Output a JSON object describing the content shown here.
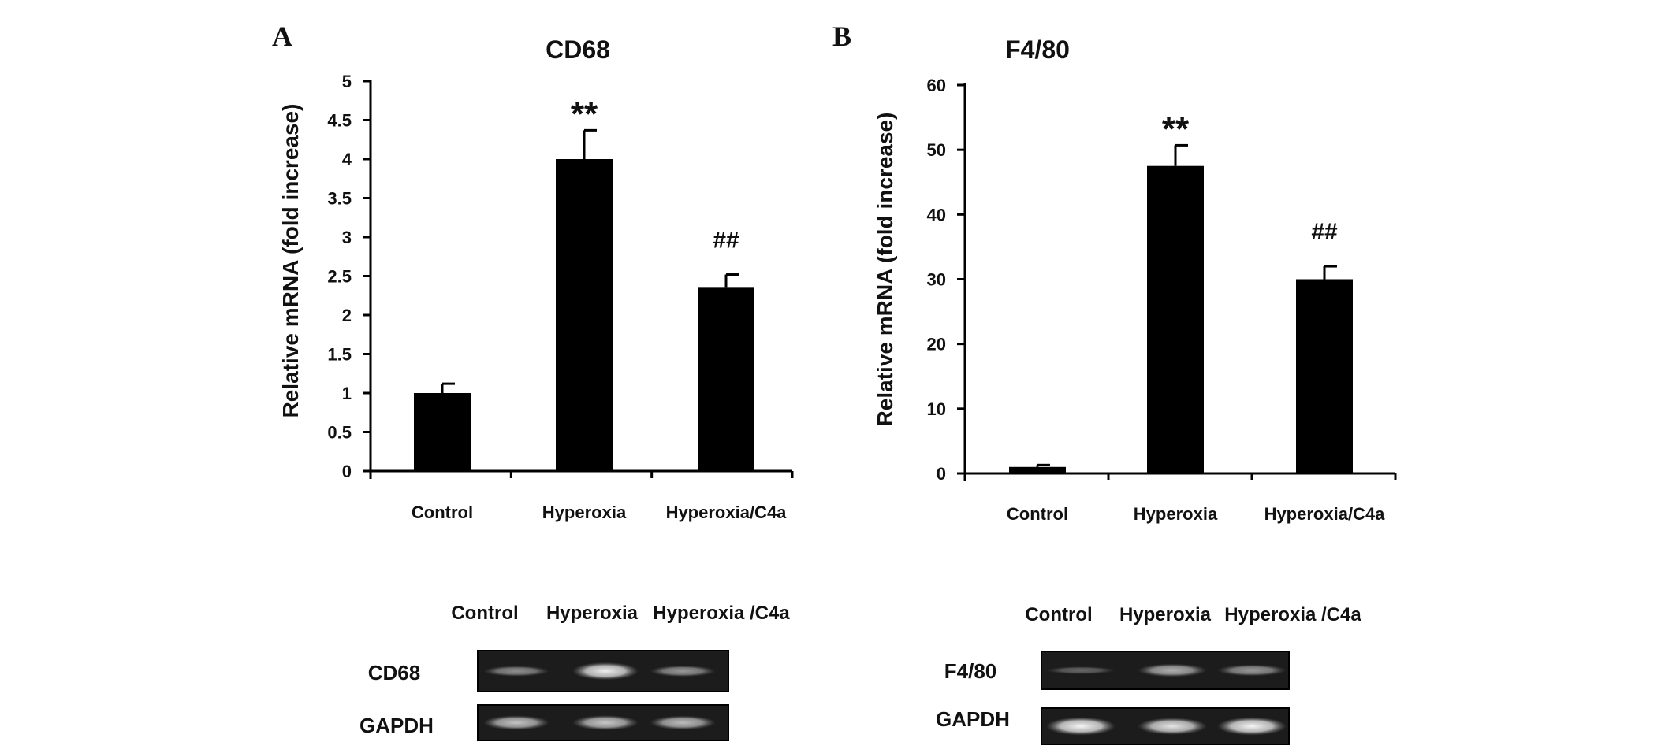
{
  "panels": [
    {
      "letter": "A"
    },
    {
      "letter": "B"
    }
  ],
  "chart_data": [
    {
      "type": "bar",
      "title": "CD68",
      "xlabel": "",
      "ylabel": "Relative mRNA (fold increase)",
      "categories": [
        "Control",
        "Hyperoxia",
        "Hyperoxia/C4a"
      ],
      "values": [
        1.0,
        4.0,
        2.35
      ],
      "errors": [
        0.12,
        0.37,
        0.17
      ],
      "significance": [
        "",
        "**",
        "##"
      ],
      "ylim": [
        0,
        5
      ],
      "yticks": [
        "0",
        "0.5",
        "1",
        "1.5",
        "2",
        "2.5",
        "3",
        "3.5",
        "4",
        "4.5",
        "5"
      ],
      "bar_color": "#000000",
      "grid": false,
      "legend": "none"
    },
    {
      "type": "bar",
      "title": "F4/80",
      "xlabel": "",
      "ylabel": "Relative mRNA (fold increase)",
      "categories": [
        "Control",
        "Hyperoxia",
        "Hyperoxia/C4a"
      ],
      "values": [
        1.0,
        47.5,
        30.0
      ],
      "errors": [
        0.3,
        3.2,
        2.0
      ],
      "significance": [
        "",
        "**",
        "##"
      ],
      "ylim": [
        0,
        60
      ],
      "yticks": [
        "0",
        "10",
        "20",
        "30",
        "40",
        "50",
        "60"
      ],
      "bar_color": "#000000",
      "grid": false,
      "legend": "none"
    }
  ],
  "gels": [
    {
      "lane_labels": [
        "Control",
        "Hyperoxia",
        "Hyperoxia /C4a"
      ],
      "rows": [
        {
          "label": "CD68",
          "intensities": [
            0.35,
            0.9,
            0.4
          ]
        },
        {
          "label": "GAPDH",
          "intensities": [
            0.65,
            0.68,
            0.62
          ]
        }
      ]
    },
    {
      "lane_labels": [
        "Control",
        "Hyperoxia",
        "Hyperoxia /C4a"
      ],
      "rows": [
        {
          "label": "F4/80",
          "intensities": [
            0.12,
            0.55,
            0.42
          ]
        },
        {
          "label": "GAPDH",
          "intensities": [
            0.95,
            0.85,
            0.95
          ]
        }
      ]
    }
  ]
}
